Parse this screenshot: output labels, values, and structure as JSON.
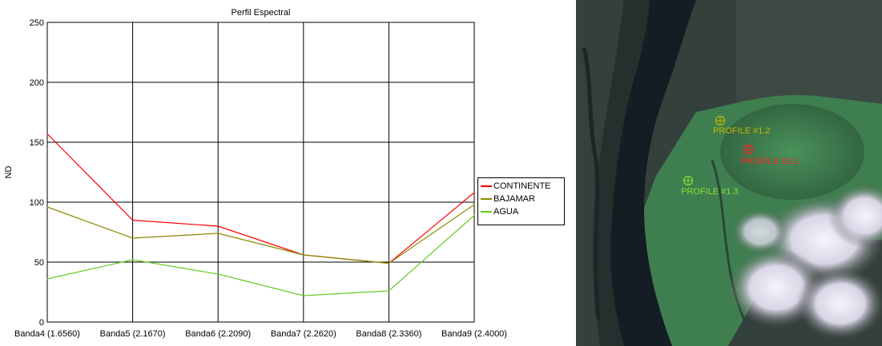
{
  "chart_data": {
    "type": "line",
    "title": "Perfil Espectral",
    "xlabel": "",
    "ylabel": "ND",
    "ylim": [
      0,
      250
    ],
    "yticks": [
      0,
      50,
      100,
      150,
      200,
      250
    ],
    "grid": true,
    "legend_position": "right",
    "categories": [
      "Banda4 (1.6560)",
      "Banda5 (2.1670)",
      "Banda6 (2.2090)",
      "Banda7 (2.2620)",
      "Banda8 (2.3360)",
      "Banda9 (2.4000)"
    ],
    "series": [
      {
        "name": "CONTINENTE",
        "color": "#ff0000",
        "values": [
          157,
          85,
          80,
          56,
          49,
          108
        ]
      },
      {
        "name": "BAJAMAR",
        "color": "#8a8a00",
        "values": [
          96,
          70,
          74,
          56,
          49,
          98
        ]
      },
      {
        "name": "AGUA",
        "color": "#66cc22",
        "values": [
          36,
          52,
          40,
          22,
          26,
          89
        ]
      }
    ]
  },
  "image_panel": {
    "profiles": [
      {
        "label": "PROFILE #1.2",
        "color": "#c8b400"
      },
      {
        "label": "PROFILE #1.1",
        "color": "#ff2222"
      },
      {
        "label": "PROFILE #1.3",
        "color": "#88dd33"
      }
    ]
  }
}
